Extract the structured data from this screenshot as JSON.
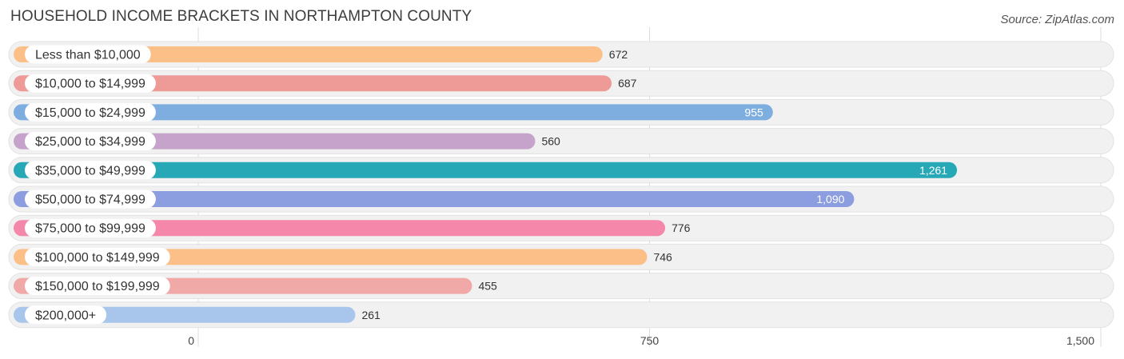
{
  "title": "HOUSEHOLD INCOME BRACKETS IN NORTHAMPTON COUNTY",
  "source": "Source: ZipAtlas.com",
  "chart_data": {
    "type": "bar",
    "orientation": "horizontal",
    "title": "HOUSEHOLD INCOME BRACKETS IN NORTHAMPTON COUNTY",
    "xlabel": "",
    "ylabel": "",
    "xlim": [
      0,
      1500
    ],
    "grid": true,
    "ticks": [
      {
        "value": 0,
        "label": "0"
      },
      {
        "value": 750,
        "label": "750"
      },
      {
        "value": 1500,
        "label": "1,500"
      }
    ],
    "categories": [
      "Less than $10,000",
      "$10,000 to $14,999",
      "$15,000 to $24,999",
      "$25,000 to $34,999",
      "$35,000 to $49,999",
      "$50,000 to $74,999",
      "$75,000 to $99,999",
      "$100,000 to $149,999",
      "$150,000 to $199,999",
      "$200,000+"
    ],
    "values": [
      672,
      687,
      955,
      560,
      1261,
      1090,
      776,
      746,
      455,
      261
    ],
    "value_labels": [
      "672",
      "687",
      "955",
      "560",
      "1,261",
      "1,090",
      "776",
      "746",
      "455",
      "261"
    ],
    "colors": [
      "#fbbf87",
      "#ee9b98",
      "#7eade0",
      "#c6a3ca",
      "#27a8b7",
      "#8c9de0",
      "#f487aa",
      "#fbbf87",
      "#f0a9a7",
      "#a8c6ec"
    ]
  }
}
